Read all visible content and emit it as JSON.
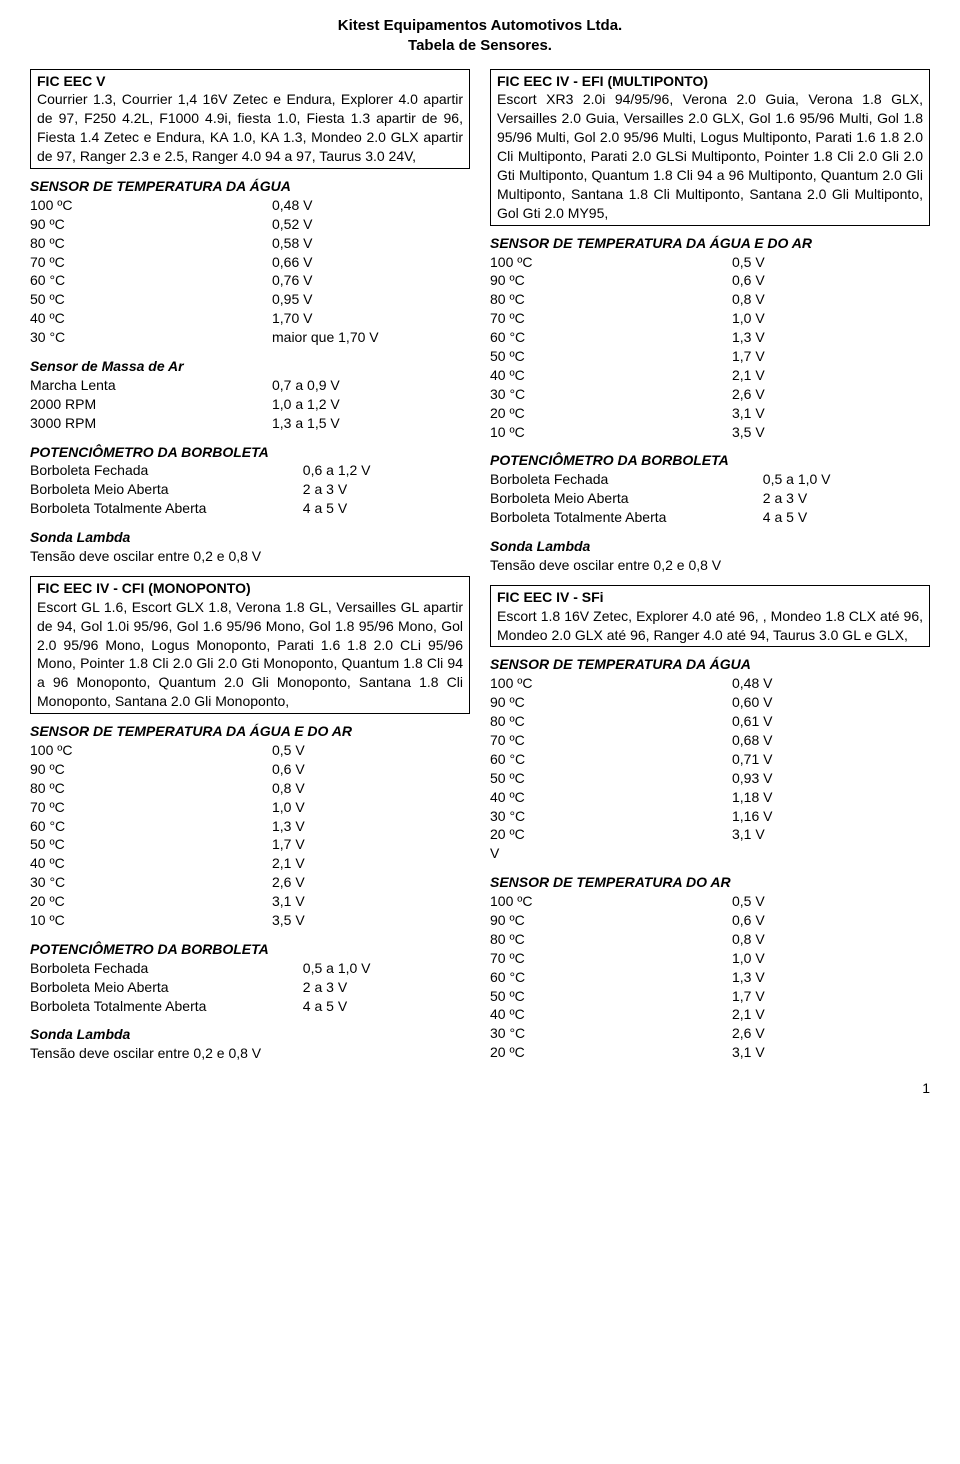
{
  "header": {
    "line1": "Kitest Equipamentos Automotivos Ltda.",
    "line2": "Tabela de Sensores."
  },
  "left": {
    "box1": {
      "title": "FIC EEC V",
      "body": "Courrier 1.3, Courrier 1,4 16V Zetec e Endura, Explorer 4.0 apartir de 97, F250 4.2L, F1000 4.9i, fiesta 1.0, Fiesta 1.3 apartir de 96, Fiesta 1.4 Zetec e Endura, KA 1.0, KA 1.3, Mondeo 2.0 GLX apartir de 97, Ranger 2.3 e 2.5, Ranger 4.0 94 a 97, Taurus 3.0 24V,"
    },
    "tempAgua": {
      "title": "SENSOR DE TEMPERATURA DA ÁGUA",
      "rows": [
        [
          "100 ºC",
          "0,48 V"
        ],
        [
          "90 ºC",
          "0,52 V"
        ],
        [
          "80 ºC",
          "0,58 V"
        ],
        [
          "70 ºC",
          "0,66 V"
        ],
        [
          "60 °C",
          "0,76 V"
        ],
        [
          "50 ºC",
          "0,95 V"
        ],
        [
          "40 ºC",
          "1,70 V"
        ],
        [
          "30 °C",
          "maior que 1,70 V"
        ]
      ]
    },
    "massaAr": {
      "title": "Sensor de Massa de Ar",
      "rows": [
        [
          "Marcha Lenta",
          "0,7 a 0,9 V"
        ],
        [
          "2000 RPM",
          "1,0 a 1,2 V"
        ],
        [
          "3000 RPM",
          "1,3 a 1,5 V"
        ]
      ]
    },
    "pot1": {
      "title": "POTENCIÔMETRO DA BORBOLETA",
      "rows": [
        [
          "Borboleta Fechada",
          "0,6 a 1,2 V"
        ],
        [
          "Borboleta Meio Aberta",
          "2 a 3 V"
        ],
        [
          "Borboleta Totalmente Aberta",
          "4 a 5 V"
        ]
      ]
    },
    "lambda1": {
      "title": "Sonda Lambda",
      "body": "Tensão deve oscilar entre 0,2 e 0,8 V"
    },
    "box2": {
      "title": "FIC EEC IV - CFI (MONOPONTO)",
      "body": "Escort GL 1.6, Escort GLX 1.8, Verona 1.8 GL, Versailles GL apartir de 94, Gol 1.0i 95/96, Gol 1.6 95/96 Mono, Gol 1.8 95/96 Mono, Gol 2.0 95/96 Mono, Logus Monoponto, Parati 1.6 1.8 2.0 CLi 95/96 Mono, Pointer 1.8 Cli 2.0 Gli 2.0 Gti Monoponto, Quantum 1.8 Cli 94 a 96 Monoponto, Quantum 2.0 Gli Monoponto, Santana 1.8 Cli Monoponto, Santana 2.0 Gli Monoponto,"
    },
    "tempAguaAr": {
      "title": "SENSOR DE TEMPERATURA DA ÁGUA E DO AR",
      "rows": [
        [
          "100 ºC",
          "0,5 V"
        ],
        [
          "90 ºC",
          "0,6 V"
        ],
        [
          "80 ºC",
          "0,8 V"
        ],
        [
          "70 ºC",
          "1,0 V"
        ],
        [
          "60 °C",
          "1,3 V"
        ],
        [
          "50 ºC",
          "1,7 V"
        ],
        [
          "40 ºC",
          "2,1 V"
        ],
        [
          "30 °C",
          "2,6 V"
        ],
        [
          "20 ºC",
          "3,1 V"
        ],
        [
          "10 ºC",
          "3,5 V"
        ]
      ]
    },
    "pot2": {
      "title": "POTENCIÔMETRO DA BORBOLETA",
      "rows": [
        [
          "Borboleta Fechada",
          "0,5 a 1,0 V"
        ],
        [
          "Borboleta Meio Aberta",
          "2 a 3 V"
        ],
        [
          "Borboleta Totalmente Aberta",
          "4 a 5 V"
        ]
      ]
    },
    "lambda2": {
      "title": "Sonda Lambda",
      "body": "Tensão deve oscilar entre 0,2 e 0,8 V"
    }
  },
  "right": {
    "box1": {
      "title": "FIC EEC IV - EFI (MULTIPONTO)",
      "body": "Escort XR3 2.0i 94/95/96, Verona 2.0 Guia, Verona 1.8 GLX, Versailles 2.0 Guia, Versailles 2.0 GLX, Gol 1.6 95/96 Multi, Gol 1.8 95/96 Multi, Gol 2.0 95/96 Multi, Logus Multiponto, Parati 1.6 1.8 2.0 Cli Multiponto, Parati 2.0 GLSi Multiponto, Pointer 1.8 Cli 2.0 Gli 2.0 Gti Multiponto, Quantum 1.8 Cli 94 a 96 Multiponto, Quantum 2.0 Gli Multiponto, Santana 1.8 Cli Multiponto, Santana 2.0 Gli Multiponto, Gol Gti 2.0 MY95,"
    },
    "tempAguaAr": {
      "title": "SENSOR DE TEMPERATURA DA ÁGUA E DO AR",
      "rows": [
        [
          "100 ºC",
          "0,5 V"
        ],
        [
          "90 ºC",
          "0,6 V"
        ],
        [
          "80 ºC",
          "0,8 V"
        ],
        [
          "70 ºC",
          "1,0 V"
        ],
        [
          "60 °C",
          "1,3 V"
        ],
        [
          "50 ºC",
          "1,7 V"
        ],
        [
          "40 ºC",
          "2,1 V"
        ],
        [
          "30 °C",
          "2,6 V"
        ],
        [
          "20 ºC",
          "3,1 V"
        ],
        [
          "10 ºC",
          "3,5 V"
        ]
      ]
    },
    "pot": {
      "title": "POTENCIÔMETRO DA BORBOLETA",
      "rows": [
        [
          "Borboleta Fechada",
          "0,5 a 1,0 V"
        ],
        [
          "Borboleta Meio Aberta",
          "2 a 3 V"
        ],
        [
          "Borboleta Totalmente Aberta",
          "4 a 5 V"
        ]
      ]
    },
    "lambda": {
      "title": "Sonda Lambda",
      "body": "Tensão deve oscilar entre 0,2 e 0,8 V"
    },
    "box2": {
      "title": "FIC EEC IV - SFi",
      "body": "Escort 1.8 16V Zetec, Explorer 4.0 até 96, , Mondeo 1.8 CLX até 96, Mondeo 2.0 GLX até 96, Ranger 4.0 até 94, Taurus 3.0 GL e GLX,"
    },
    "tempAgua2": {
      "title": "SENSOR DE TEMPERATURA DA ÁGUA",
      "rows": [
        [
          "100 ºC",
          "0,48 V"
        ],
        [
          "90 ºC",
          "0,60 V"
        ],
        [
          "80 ºC",
          "0,61 V"
        ],
        [
          "70 ºC",
          "0,68 V"
        ],
        [
          "60 °C",
          "0,71 V"
        ],
        [
          "50 ºC",
          "0,93 V"
        ],
        [
          "40 ºC",
          "1,18 V"
        ],
        [
          "30 °C",
          "1,16 V"
        ],
        [
          "20 ºC",
          "3,1 V"
        ],
        [
          " V",
          ""
        ]
      ]
    },
    "tempAr2": {
      "title": "SENSOR DE TEMPERATURA DO AR",
      "rows": [
        [
          "100 ºC",
          "0,5 V"
        ],
        [
          "90 ºC",
          "0,6 V"
        ],
        [
          "80 ºC",
          "0,8 V"
        ],
        [
          "70 ºC",
          "1,0 V"
        ],
        [
          "60 °C",
          "1,3 V"
        ],
        [
          "50 ºC",
          "1,7 V"
        ],
        [
          "40 ºC",
          "2,1 V"
        ],
        [
          "30 °C",
          "2,6 V"
        ],
        [
          "20 ºC",
          "3,1 V"
        ]
      ]
    }
  },
  "page": "1"
}
